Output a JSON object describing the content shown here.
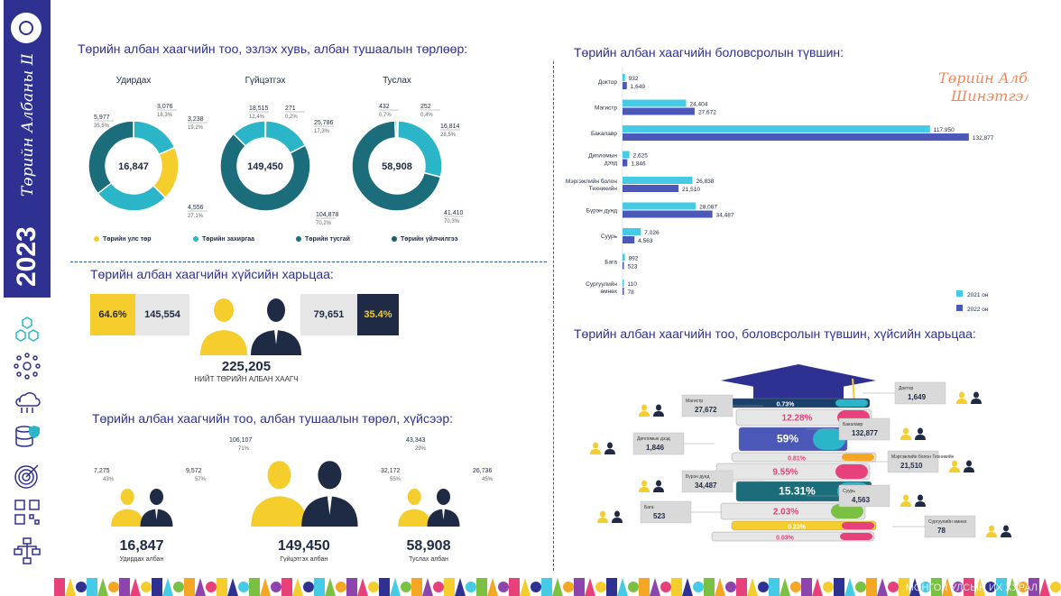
{
  "sidebar": {
    "brand": "Төрийн Албаны Шинэтгэл",
    "year": "2023",
    "icons": [
      "hexagon-cluster-icon",
      "network-icon",
      "cloud-network-icon",
      "database-shield-icon",
      "target-icon",
      "qr-code-icon",
      "org-chart-icon"
    ]
  },
  "brand_logo_text": "Төрийн Албаны Шинэтгэл",
  "footer": "МОНГОЛ УЛСЫН ИХ ХУРАЛ",
  "colors": {
    "navy": "#2e3192",
    "teal": "#1b6d7b",
    "cyan": "#2bb5c8",
    "yellow": "#f5cd2c",
    "dark": "#1f2a44",
    "blue_bar": "#4c58b8",
    "cyan_bar": "#45cbe5"
  },
  "section1": {
    "title": "Төрийн албан хаагчийн тоо, эзлэх хувь, албан тушаалын төрлөөр:",
    "donuts": [
      {
        "label": "Удирдах",
        "total": "16,847",
        "slices": [
          {
            "value": "3,076",
            "pct": "18,3%"
          },
          {
            "value": "3,238",
            "pct": "19,2%"
          },
          {
            "value": "4,556",
            "pct": "27,1%"
          },
          {
            "value": "5,977",
            "pct": "35,5%"
          }
        ]
      },
      {
        "label": "Гүйцэтгэх",
        "total": "149,450",
        "slices": [
          {
            "value": "271",
            "pct": "0,2%"
          },
          {
            "value": "25,786",
            "pct": "17,3%"
          },
          {
            "value": "104,878",
            "pct": "70,2%"
          },
          {
            "value": "18,515",
            "pct": "12,4%"
          }
        ]
      },
      {
        "label": "Туслах",
        "total": "58,908",
        "slices": [
          {
            "value": "252",
            "pct": "0,4%"
          },
          {
            "value": "16,814",
            "pct": "28,5%"
          },
          {
            "value": "41,410",
            "pct": "70,3%"
          },
          {
            "value": "432",
            "pct": "0,7%"
          }
        ]
      }
    ],
    "legend": [
      "Төрийн улс төр",
      "Төрийн захиргаа",
      "Төрийн тусгай",
      "Төрийн үйлчилгээ"
    ]
  },
  "section2": {
    "title": "Төрийн албан хаагчийн хүйсийн харьцаа:",
    "female_pct": "64.6%",
    "female_count": "145,554",
    "male_count": "79,651",
    "male_pct": "35.4%",
    "total": "225,205",
    "total_label": "НИЙТ ТӨРИЙН АЛБАН ХААГЧ"
  },
  "section3": {
    "title": "Төрийн албан хаагчийн тоо, албан тушаалын төрөл, хүйсээр:",
    "groups": [
      {
        "female": "7,275",
        "female_pct": "43%",
        "male": "9,572",
        "male_pct": "57%",
        "total": "16,847",
        "label": "Удирдах албан"
      },
      {
        "female": "106,107",
        "female_pct": "71%",
        "male": "43,343",
        "male_pct": "29%",
        "total": "149,450",
        "label": "Гүйцэтгэх албан"
      },
      {
        "female": "32,172",
        "female_pct": "55%",
        "male": "26,736",
        "male_pct": "45%",
        "total": "58,908",
        "label": "Туслах албан"
      }
    ]
  },
  "chart_data": {
    "type": "bar",
    "title": "Төрийн албан хаагчийн боловсролын түвшин:",
    "orientation": "horizontal",
    "categories": [
      "Доктор",
      "Магистр",
      "Бакалавр",
      "Дипломын дээд",
      "Мэргэжлийн болон Техникийн",
      "Бүрэн дунд",
      "Суурь",
      "Бага",
      "Сургуулийн өмнөх"
    ],
    "series": [
      {
        "name": "2021 он",
        "values": [
          932,
          24404,
          117950,
          2625,
          26838,
          28087,
          7026,
          892,
          110
        ],
        "labels": [
          "932",
          "24,404",
          "117,950",
          "2,625",
          "26,838",
          "28,087",
          "7,026",
          "892",
          "110"
        ]
      },
      {
        "name": "2022 он",
        "values": [
          1649,
          27672,
          132877,
          1846,
          21510,
          34487,
          4563,
          523,
          78
        ],
        "labels": [
          "1,649",
          "27,672",
          "132,877",
          "1,846",
          "21,510",
          "34,487",
          "4,563",
          "523",
          "78"
        ]
      }
    ],
    "xlim": [
      0,
      135000
    ],
    "legend_position": "bottom-right"
  },
  "section5": {
    "title": "Төрийн албан хаагчийн тоо, боловсролын түвшин, хүйсийн харьцаа:",
    "book_pcts": [
      "0.73%",
      "12.28%",
      "59%",
      "0.81%",
      "9.55%",
      "15.31%",
      "2.03%",
      "0.23%",
      "0.03%"
    ],
    "cards": [
      {
        "name": "Доктор",
        "value": "1,649"
      },
      {
        "name": "Магистр",
        "value": "27,672"
      },
      {
        "name": "Бакалавр",
        "value": "132,877"
      },
      {
        "name": "Дипломын дээд",
        "value": "1,846"
      },
      {
        "name": "Мэргэжлийн болон Техникийн",
        "value": "21,510"
      },
      {
        "name": "Бүрэн дунд",
        "value": "34,487"
      },
      {
        "name": "Суурь",
        "value": "4,563"
      },
      {
        "name": "Бага",
        "value": "523"
      },
      {
        "name": "Сургуулийн өмнөх",
        "value": "78"
      }
    ]
  }
}
